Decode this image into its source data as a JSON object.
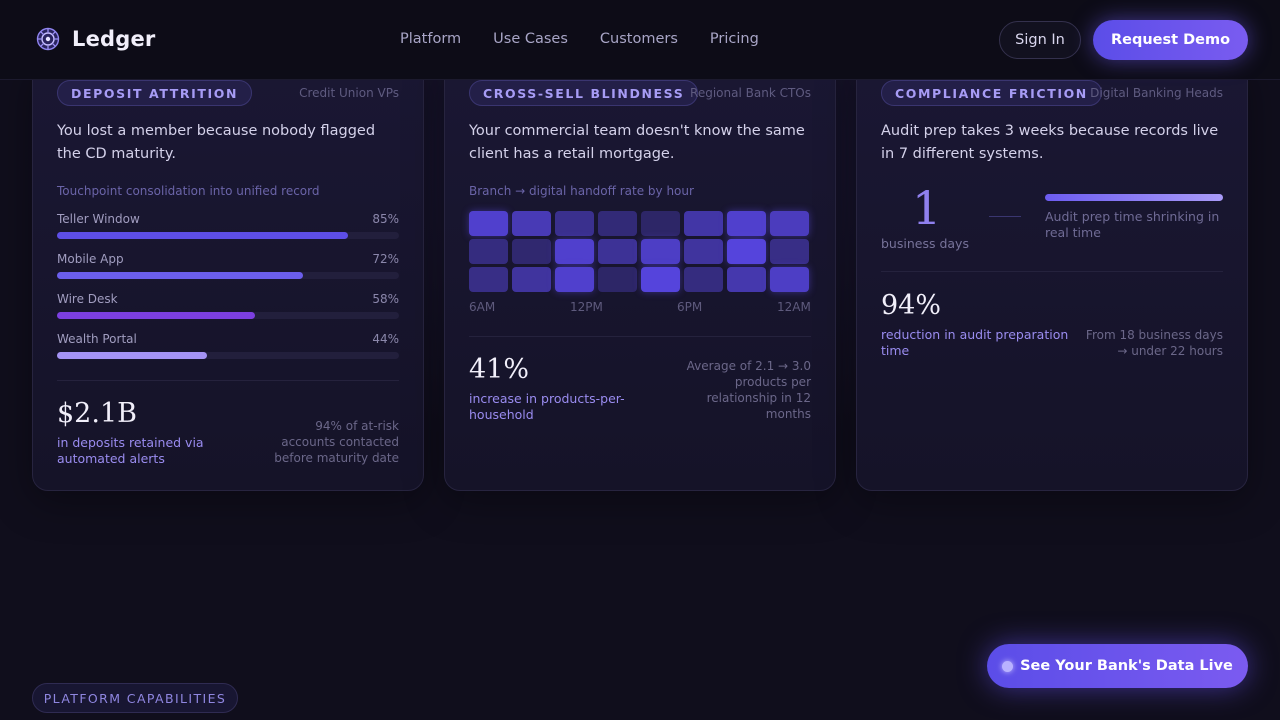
{
  "brand": {
    "name": "Ledger"
  },
  "nav": {
    "links": [
      "Platform",
      "Use Cases",
      "Customers",
      "Pricing"
    ],
    "sign_in": "Sign In",
    "request_demo": "Request Demo"
  },
  "cards": [
    {
      "tag": "DEPOSIT ATTRITION",
      "audience": "Credit Union VPs",
      "headline": "You lost a member because nobody flagged the CD maturity.",
      "sublabel": "Touchpoint consolidation into unified record",
      "bars": [
        {
          "label": "Teller Window",
          "value": "85%",
          "pct": 85,
          "color": "#5d4ee6"
        },
        {
          "label": "Mobile App",
          "value": "72%",
          "pct": 72,
          "color": "#6b5eec"
        },
        {
          "label": "Wire Desk",
          "value": "58%",
          "pct": 58,
          "color": "#7c3fe0"
        },
        {
          "label": "Wealth Portal",
          "value": "44%",
          "pct": 44,
          "color": "#a493f4"
        }
      ],
      "metric": "$2.1B",
      "metric_caption": "in deposits retained via automated alerts",
      "note": "94% of at-risk accounts contacted before maturity date"
    },
    {
      "tag": "CROSS-SELL BLINDNESS",
      "audience": "Regional Bank CTOs",
      "headline": "Your commercial team doesn't know the same client has a retail mortgage.",
      "sublabel": "Branch → digital handoff rate by hour",
      "heatmap": [
        [
          0.85,
          0.7,
          0.45,
          0.3,
          0.2,
          0.6,
          0.85,
          0.75
        ],
        [
          0.35,
          0.25,
          0.85,
          0.5,
          0.8,
          0.55,
          0.95,
          0.4
        ],
        [
          0.4,
          0.55,
          0.85,
          0.2,
          0.95,
          0.35,
          0.65,
          0.8
        ]
      ],
      "hours": [
        "6AM",
        "12PM",
        "6PM",
        "12AM"
      ],
      "metric": "41%",
      "metric_caption": "increase in products-per-household",
      "note": "Average of 2.1 → 3.0 products per relationship in 12 months"
    },
    {
      "tag": "COMPLIANCE FRICTION",
      "audience": "Digital Banking Heads",
      "headline": "Audit prep takes 3 weeks because records live in 7 different systems.",
      "counter": "1",
      "counter_caption": "business days",
      "shrink_caption": "Audit prep time shrinking in real time",
      "metric": "94%",
      "metric_caption": "reduction in audit preparation time",
      "note": "From 18 business days → under 22 hours"
    }
  ],
  "cta": {
    "label": "See Your Bank's Data Live"
  },
  "section_pill": "PLATFORM CAPABILITIES"
}
